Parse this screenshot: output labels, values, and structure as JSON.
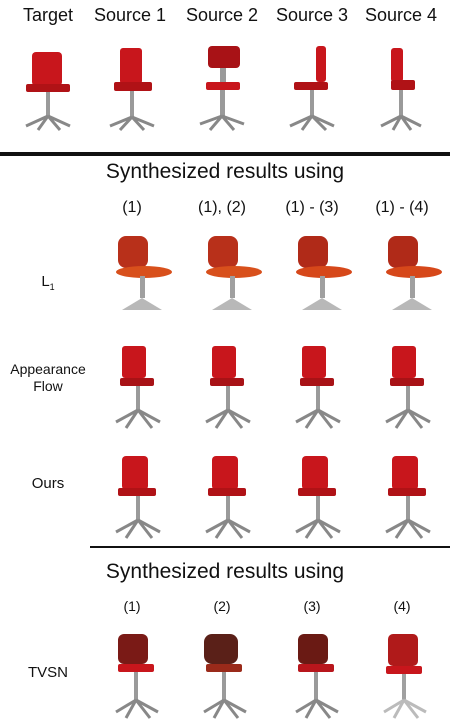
{
  "header": {
    "columns": [
      "Target",
      "Source 1",
      "Source 2",
      "Source 3",
      "Source 4"
    ]
  },
  "section1": {
    "title": "Synthesized results using",
    "columns": [
      "(1)",
      "(1), (2)",
      "(1) - (3)",
      "(1) - (4)"
    ],
    "rows": [
      {
        "label": "L",
        "sub": "1"
      },
      {
        "label": "Appearance Flow"
      },
      {
        "label": "Ours"
      }
    ]
  },
  "section2": {
    "title": "Synthesized results using",
    "columns": [
      "(1)",
      "(2)",
      "(3)",
      "(4)"
    ],
    "rows": [
      {
        "label": "TVSN"
      }
    ]
  },
  "colors": {
    "seat_red": "#c8161c",
    "seat_dark": "#8a0d10",
    "metal": "#9a9a9a",
    "blurry_orange": "#d8501c",
    "tvsn_dark": "#5a2018"
  }
}
